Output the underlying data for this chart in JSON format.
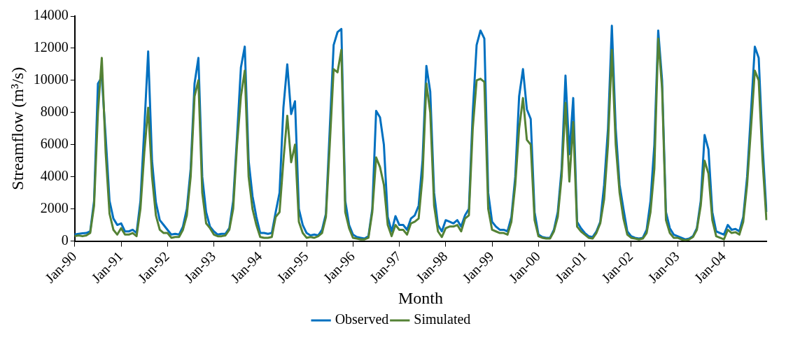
{
  "chart_data": {
    "type": "line",
    "xlabel": "Month",
    "ylabel": "Streamflow (m³/s)",
    "categories": [
      "Jan-90",
      null,
      null,
      null,
      null,
      null,
      null,
      null,
      null,
      null,
      null,
      null,
      "Jan-91",
      null,
      null,
      null,
      null,
      null,
      null,
      null,
      null,
      null,
      null,
      null,
      "Jan-92",
      null,
      null,
      null,
      null,
      null,
      null,
      null,
      null,
      null,
      null,
      null,
      "Jan-93",
      null,
      null,
      null,
      null,
      null,
      null,
      null,
      null,
      null,
      null,
      null,
      "Jan-94",
      null,
      null,
      null,
      null,
      null,
      null,
      null,
      null,
      null,
      null,
      null,
      "Jan-95",
      null,
      null,
      null,
      null,
      null,
      null,
      null,
      null,
      null,
      null,
      null,
      "Jan-96",
      null,
      null,
      null,
      null,
      null,
      null,
      null,
      null,
      null,
      null,
      null,
      "Jan-97",
      null,
      null,
      null,
      null,
      null,
      null,
      null,
      null,
      null,
      null,
      null,
      "Jan-98",
      null,
      null,
      null,
      null,
      null,
      null,
      null,
      null,
      null,
      null,
      null,
      "Jan-99",
      null,
      null,
      null,
      null,
      null,
      null,
      null,
      null,
      null,
      null,
      null,
      "Jan-00",
      null,
      null,
      null,
      null,
      null,
      null,
      null,
      null,
      null,
      null,
      null,
      "Jan-01",
      null,
      null,
      null,
      null,
      null,
      null,
      null,
      null,
      null,
      null,
      null,
      "Jan-02",
      null,
      null,
      null,
      null,
      null,
      null,
      null,
      null,
      null,
      null,
      null,
      "Jan-03",
      null,
      null,
      null,
      null,
      null,
      null,
      null,
      null,
      null,
      null,
      null,
      "Jan-04",
      null,
      null,
      null,
      null,
      null,
      null,
      null,
      null,
      null,
      null,
      null
    ],
    "series": [
      {
        "name": "Observed",
        "color": "#0070c0",
        "values": [
          400,
          450,
          480,
          500,
          600,
          2500,
          9800,
          10200,
          6500,
          2500,
          1400,
          1000,
          1100,
          600,
          600,
          700,
          500,
          2500,
          7000,
          11800,
          5000,
          2400,
          1300,
          1000,
          700,
          400,
          450,
          400,
          900,
          2000,
          4500,
          9800,
          11400,
          4000,
          1800,
          900,
          600,
          400,
          450,
          450,
          800,
          2500,
          6500,
          10800,
          12100,
          5000,
          2800,
          1500,
          500,
          500,
          450,
          500,
          1800,
          3000,
          8300,
          11000,
          7900,
          8700,
          2000,
          1000,
          500,
          350,
          400,
          350,
          700,
          1700,
          7000,
          12200,
          13000,
          13200,
          2500,
          1000,
          400,
          250,
          200,
          150,
          300,
          2000,
          8100,
          7700,
          6000,
          1500,
          600,
          1550,
          1000,
          1000,
          700,
          1400,
          1600,
          2200,
          5000,
          10900,
          9300,
          3000,
          1000,
          600,
          1300,
          1200,
          1100,
          1300,
          900,
          1600,
          2000,
          8000,
          12200,
          13100,
          12600,
          3000,
          1200,
          900,
          700,
          700,
          600,
          1500,
          4000,
          9000,
          10700,
          8200,
          7600,
          1800,
          400,
          250,
          200,
          200,
          700,
          1800,
          4500,
          10300,
          5400,
          8900,
          1200,
          800,
          500,
          300,
          250,
          600,
          1200,
          3500,
          7000,
          13400,
          7000,
          3500,
          2000,
          600,
          300,
          200,
          150,
          200,
          700,
          2500,
          6000,
          13100,
          10000,
          1800,
          800,
          400,
          300,
          200,
          100,
          150,
          300,
          800,
          2500,
          6600,
          5700,
          1800,
          600,
          500,
          400,
          1000,
          700,
          750,
          600,
          1500,
          4000,
          8000,
          12100,
          11400,
          6000,
          1800
        ]
      },
      {
        "name": "Simulated",
        "color": "#548235",
        "values": [
          300,
          350,
          300,
          350,
          500,
          2200,
          8000,
          11400,
          5500,
          1700,
          700,
          400,
          800,
          400,
          400,
          500,
          300,
          2000,
          5500,
          8300,
          4000,
          1600,
          700,
          500,
          500,
          200,
          250,
          250,
          700,
          1600,
          4000,
          9000,
          10000,
          3000,
          1100,
          800,
          400,
          300,
          300,
          350,
          700,
          2000,
          6000,
          9000,
          10600,
          4000,
          2000,
          1000,
          250,
          200,
          200,
          250,
          1500,
          1800,
          5000,
          7800,
          4900,
          6000,
          1200,
          500,
          200,
          250,
          200,
          300,
          500,
          1500,
          6000,
          10700,
          10500,
          11900,
          1800,
          800,
          200,
          150,
          100,
          100,
          200,
          1800,
          5200,
          4600,
          3500,
          1000,
          300,
          1000,
          700,
          700,
          400,
          1100,
          1200,
          1400,
          4000,
          9800,
          8000,
          2200,
          600,
          250,
          800,
          900,
          900,
          1000,
          600,
          1400,
          1600,
          7000,
          10000,
          10100,
          9900,
          2000,
          700,
          600,
          500,
          500,
          400,
          1200,
          3500,
          7000,
          8900,
          6300,
          6000,
          1300,
          300,
          200,
          150,
          150,
          600,
          1500,
          4000,
          8600,
          3700,
          7400,
          900,
          600,
          400,
          200,
          150,
          500,
          1100,
          2600,
          6000,
          11900,
          6000,
          3000,
          1400,
          400,
          200,
          150,
          100,
          150,
          500,
          1800,
          4500,
          12600,
          9500,
          1300,
          500,
          200,
          200,
          100,
          50,
          100,
          250,
          700,
          2200,
          5000,
          4200,
          1300,
          300,
          200,
          100,
          700,
          500,
          550,
          400,
          1200,
          3500,
          7000,
          10600,
          10000,
          5000,
          1300
        ]
      }
    ],
    "ylim": [
      0,
      14000
    ],
    "yticks": [
      0,
      2000,
      4000,
      6000,
      8000,
      10000,
      12000,
      14000
    ],
    "grid": false,
    "legend": "bottom"
  }
}
